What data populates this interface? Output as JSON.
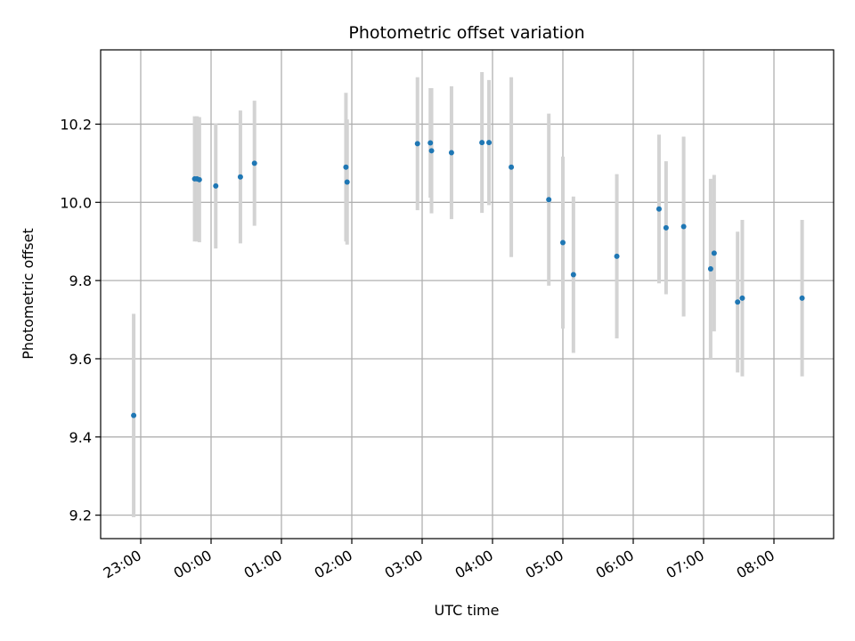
{
  "chart_data": {
    "type": "scatter",
    "title": "Photometric offset variation",
    "xlabel": "UTC time",
    "ylabel": "Photometric offset",
    "grid": true,
    "x_axis": {
      "kind": "time",
      "ticks": [
        "23:00",
        "00:00",
        "01:00",
        "02:00",
        "03:00",
        "04:00",
        "05:00",
        "06:00",
        "07:00",
        "08:00"
      ]
    },
    "y_axis": {
      "ticks": [
        "9.2",
        "9.4",
        "9.6",
        "9.8",
        "10.0",
        "10.2"
      ],
      "ylim": [
        9.14,
        10.39
      ]
    },
    "marker_color": "#1f77b4",
    "errorbar_color": "#d3d3d3",
    "series": [
      {
        "points": [
          {
            "x": "22:54",
            "y": 9.455,
            "err": 0.26
          },
          {
            "x": "23:46",
            "y": 10.06,
            "err": 0.16
          },
          {
            "x": "23:48",
            "y": 10.06,
            "err": 0.16
          },
          {
            "x": "23:50",
            "y": 10.058,
            "err": 0.16
          },
          {
            "x": "00:04",
            "y": 10.042,
            "err": 0.16
          },
          {
            "x": "00:25",
            "y": 10.065,
            "err": 0.17
          },
          {
            "x": "00:37",
            "y": 10.1,
            "err": 0.16
          },
          {
            "x": "01:55",
            "y": 10.09,
            "err": 0.19
          },
          {
            "x": "01:56",
            "y": 10.052,
            "err": 0.16
          },
          {
            "x": "02:56",
            "y": 10.15,
            "err": 0.17
          },
          {
            "x": "03:07",
            "y": 10.152,
            "err": 0.14
          },
          {
            "x": "03:08",
            "y": 10.132,
            "err": 0.16
          },
          {
            "x": "03:25",
            "y": 10.127,
            "err": 0.17
          },
          {
            "x": "03:51",
            "y": 10.153,
            "err": 0.18
          },
          {
            "x": "03:57",
            "y": 10.153,
            "err": 0.16
          },
          {
            "x": "04:16",
            "y": 10.09,
            "err": 0.23
          },
          {
            "x": "04:48",
            "y": 10.007,
            "err": 0.22
          },
          {
            "x": "05:00",
            "y": 9.897,
            "err": 0.22
          },
          {
            "x": "05:09",
            "y": 9.815,
            "err": 0.2
          },
          {
            "x": "05:46",
            "y": 9.862,
            "err": 0.21
          },
          {
            "x": "06:22",
            "y": 9.983,
            "err": 0.19
          },
          {
            "x": "06:28",
            "y": 9.935,
            "err": 0.17
          },
          {
            "x": "06:43",
            "y": 9.938,
            "err": 0.23
          },
          {
            "x": "07:06",
            "y": 9.83,
            "err": 0.23
          },
          {
            "x": "07:09",
            "y": 9.87,
            "err": 0.2
          },
          {
            "x": "07:29",
            "y": 9.745,
            "err": 0.18
          },
          {
            "x": "07:33",
            "y": 9.755,
            "err": 0.2
          },
          {
            "x": "08:24",
            "y": 9.755,
            "err": 0.2
          }
        ]
      }
    ]
  }
}
